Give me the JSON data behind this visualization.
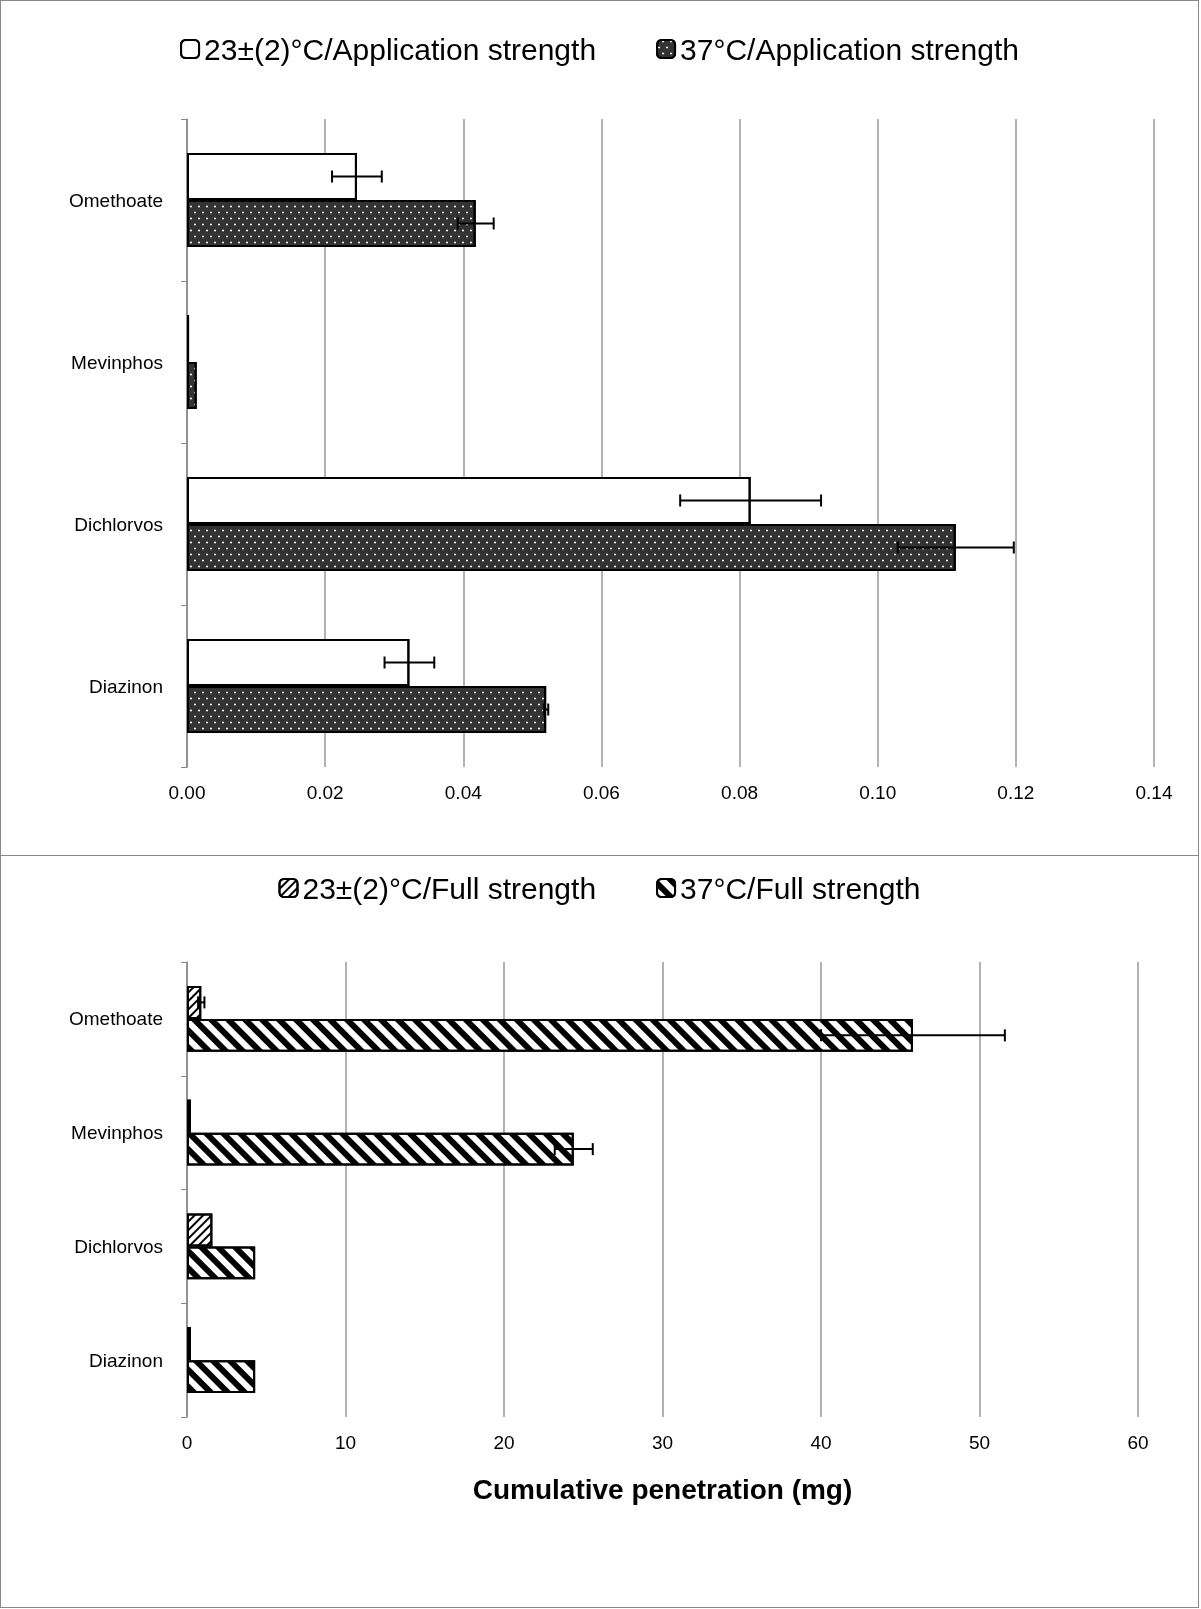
{
  "chart_data": [
    {
      "type": "bar",
      "orientation": "horizontal",
      "categories": [
        "Omethoate",
        "Mevinphos",
        "Dichlorvos",
        "Diazinon"
      ],
      "series": [
        {
          "name": "23±(2)°C/Application strength",
          "color": "#ffffff",
          "values": [
            0.0246,
            0.0003,
            0.0816,
            0.0322
          ],
          "errors": [
            0.0036,
            null,
            0.0102,
            0.0036
          ]
        },
        {
          "name": "37°C/Application strength",
          "color": "#333333",
          "values": [
            0.0418,
            0.0014,
            0.1113,
            0.052
          ],
          "errors": [
            0.0026,
            null,
            0.0084,
            0.0003
          ]
        }
      ],
      "xlim": [
        0,
        0.14
      ],
      "xticks": [
        {
          "value": 0,
          "label": "0.00"
        },
        {
          "value": 0.02,
          "label": "0.02"
        },
        {
          "value": 0.04,
          "label": "0.04"
        },
        {
          "value": 0.06,
          "label": "0.06"
        },
        {
          "value": 0.08,
          "label": "0.08"
        },
        {
          "value": 0.1,
          "label": "0.10"
        },
        {
          "value": 0.12,
          "label": "0.12"
        },
        {
          "value": 0.14,
          "label": "0.14"
        }
      ],
      "grid": "x",
      "legend": "top"
    },
    {
      "type": "bar",
      "orientation": "horizontal",
      "categories": [
        "Omethoate",
        "Mevinphos",
        "Dichlorvos",
        "Diazinon"
      ],
      "series": [
        {
          "name": "23±(2)°C/Full strength",
          "color": "#ffffff",
          "values": [
            0.9,
            0.25,
            1.6,
            0.25
          ],
          "errors": [
            0.2,
            null,
            null,
            null
          ]
        },
        {
          "name": "37°C/Full strength",
          "color": "#ffffff",
          "values": [
            45.8,
            24.4,
            4.3,
            4.3
          ],
          "errors": [
            5.8,
            1.2,
            null,
            null
          ]
        }
      ],
      "xlim": [
        0,
        60
      ],
      "xticks": [
        0,
        10,
        20,
        30,
        40,
        50,
        60
      ],
      "xlabel": "Cumulative penetration (mg)",
      "grid": "x",
      "legend": "top"
    }
  ]
}
